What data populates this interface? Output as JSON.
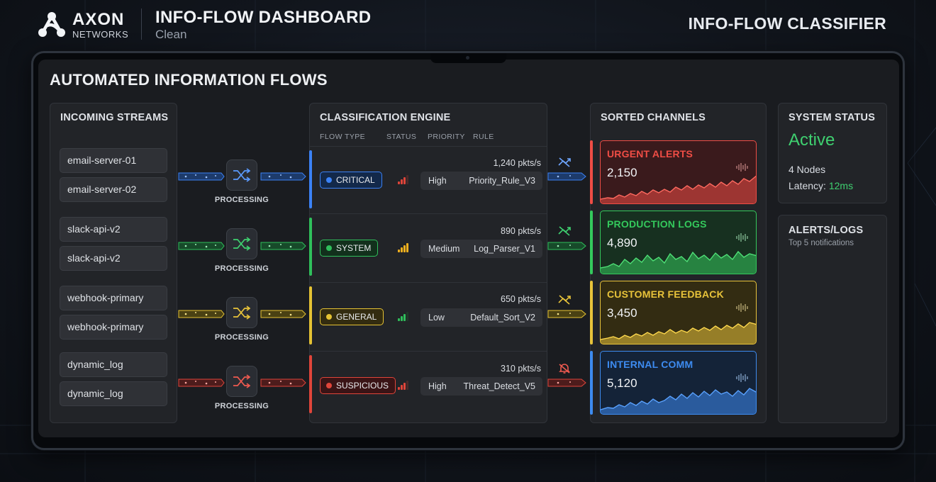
{
  "header": {
    "logo_name": "AXON",
    "logo_sub": "NETWORKS",
    "title": "INFO-FLOW DASHBOARD",
    "subtitle": "Clean",
    "right_title": "INFO-FLOW CLASSIFIER"
  },
  "screen_title": "AUTOMATED INFORMATION FLOWS",
  "incoming": {
    "title": "INCOMING STREAMS",
    "streams": [
      "email-server-01",
      "email-server-02",
      "slack-api-v2",
      "slack-api-v2",
      "webhook-primary",
      "webhook-primary",
      "dynamic_log",
      "dynamic_log"
    ]
  },
  "processing_label": "PROCESSING",
  "engine": {
    "title": "CLASSIFICATION ENGINE",
    "columns": [
      "FLOW TYPE",
      "STATUS",
      "PRIORITY",
      "RULE"
    ],
    "rows": [
      {
        "type": "CRITICAL",
        "pkts": "1,240 pkts/s",
        "priority": "High",
        "rule": "Priority_Rule_V3",
        "color": "#3b82f6",
        "signal_color": "#e0453a",
        "signal_level": 3
      },
      {
        "type": "SYSTEM",
        "pkts": "890 pkts/s",
        "priority": "Medium",
        "rule": "Log_Parser_V1",
        "color": "#2fbf5b",
        "signal_color": "#f2b01e",
        "signal_level": 4
      },
      {
        "type": "GENERAL",
        "pkts": "650 pkts/s",
        "priority": "Low",
        "rule": "Default_Sort_V2",
        "color": "#e5c233",
        "signal_color": "#2fbf5b",
        "signal_level": 3
      },
      {
        "type": "SUSPICIOUS",
        "pkts": "310 pkts/s",
        "priority": "High",
        "rule": "Threat_Detect_V5",
        "color": "#e0453a",
        "signal_color": "#e0453a",
        "signal_level": 3
      }
    ]
  },
  "channels": {
    "title": "SORTED CHANNELS",
    "items": [
      {
        "name": "URGENT ALERTS",
        "value": "2,150",
        "color": "#ef4d45",
        "bg": "#3a1a1c",
        "icon": "route-off-icon"
      },
      {
        "name": "PRODUCTION LOGS",
        "value": "4,890",
        "color": "#34c95c",
        "bg": "#173020",
        "icon": "route-off-icon"
      },
      {
        "name": "CUSTOMER FEEDBACK",
        "value": "3,450",
        "color": "#e8c33a",
        "bg": "#332c12",
        "icon": "route-off-icon"
      },
      {
        "name": "INTERNAL COMM",
        "value": "5,120",
        "color": "#3d8bf0",
        "bg": "#142338",
        "icon": "bell-off-icon"
      }
    ]
  },
  "status": {
    "title": "SYSTEM STATUS",
    "state": "Active",
    "nodes": "4 Nodes",
    "latency_label": "Latency: ",
    "latency_value": "12ms",
    "state_color": "#3fd070"
  },
  "alerts": {
    "title": "ALERTS/LOGS",
    "subtitle": "Top 5 notifications"
  }
}
